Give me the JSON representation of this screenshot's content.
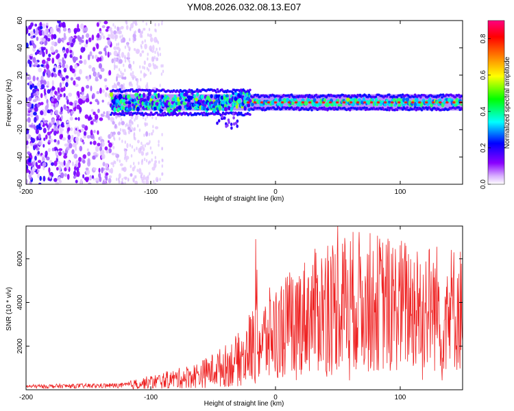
{
  "title": "YM08.2026.032.08.13.E07",
  "chart_data": [
    {
      "type": "heatmap",
      "xlabel": "Height of straight line (km)",
      "ylabel": "Frequency (Hz)",
      "xlim": [
        -200,
        150
      ],
      "ylim": [
        -60,
        60
      ],
      "xticks": [
        -200,
        -100,
        0,
        100
      ],
      "yticks": [
        60,
        40,
        20,
        0,
        -20,
        -40,
        -60
      ],
      "colorbar": {
        "label": "Normalized spectral amplitude",
        "range": [
          0,
          0.9
        ],
        "ticks": [
          0.0,
          0.2,
          0.4,
          0.6,
          0.8
        ],
        "tick_labels": [
          "0.0",
          "0.2",
          "0.4",
          "0.6",
          "0.8"
        ],
        "colors": [
          "#ffffff",
          "#8a00ff",
          "#0000ff",
          "#00ffff",
          "#00ff00",
          "#ffff00",
          "#ff8000",
          "#ff0000",
          "#ff0080"
        ]
      },
      "band_center_hz": 0,
      "band_halfwidth_hz": 4,
      "band_start_km": -132,
      "noise_region_km": [
        -200,
        -95
      ]
    },
    {
      "type": "line",
      "xlabel": "Height of straight line (km)",
      "ylabel": "SNR (10 * v/v)",
      "xlim": [
        -200,
        150
      ],
      "ylim": [
        0,
        7500
      ],
      "xticks": [
        -200,
        -100,
        0,
        100
      ],
      "yticks": [
        2000,
        4000,
        6000
      ],
      "color": "#ee2020",
      "trend_km": [
        -200,
        -120,
        -80,
        -60,
        -40,
        -25,
        -20,
        -10,
        0,
        20,
        40,
        60,
        80,
        100,
        120,
        150
      ],
      "trend_snr": [
        150,
        200,
        500,
        700,
        1100,
        1500,
        2000,
        2200,
        2700,
        3300,
        3800,
        4100,
        4000,
        3900,
        3800,
        3700
      ],
      "peaks_km": [
        -16,
        -15,
        50,
        42,
        56,
        68
      ],
      "peaks_snr": [
        6900,
        5500,
        7500,
        6600,
        6600,
        6100
      ]
    }
  ]
}
